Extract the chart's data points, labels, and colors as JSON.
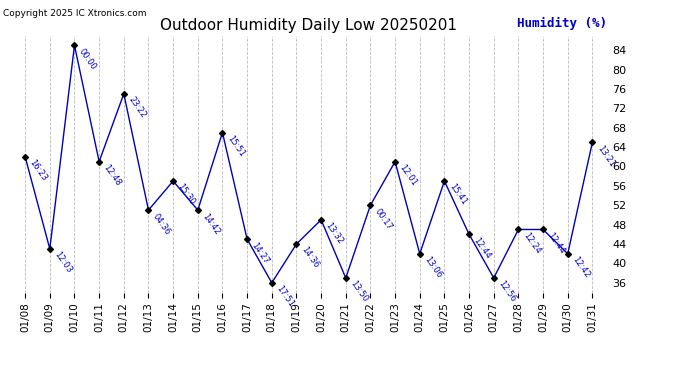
{
  "title": "Outdoor Humidity Daily Low 20250201",
  "ylabel": "Humidity (%)",
  "copyright": "Copyright 2025 IC Xtronics.com",
  "background_color": "#ffffff",
  "line_color": "#0000bb",
  "annotation_color": "#0000cc",
  "marker_color": "#000000",
  "grid_color": "#bbbbbb",
  "dates": [
    "01/08",
    "01/09",
    "01/10",
    "01/11",
    "01/12",
    "01/13",
    "01/14",
    "01/15",
    "01/16",
    "01/17",
    "01/18",
    "01/19",
    "01/20",
    "01/21",
    "01/22",
    "01/23",
    "01/24",
    "01/25",
    "01/26",
    "01/27",
    "01/28",
    "01/29",
    "01/30",
    "01/31"
  ],
  "values": [
    62,
    43,
    85,
    61,
    75,
    51,
    57,
    51,
    67,
    45,
    36,
    44,
    49,
    37,
    52,
    61,
    42,
    57,
    46,
    37,
    47,
    47,
    42,
    65
  ],
  "times": [
    "16:23",
    "12:03",
    "00:00",
    "12:48",
    "23:22",
    "04:36",
    "15:30",
    "14:42",
    "15:51",
    "14:27",
    "17:51",
    "14:36",
    "13:32",
    "13:50",
    "00:17",
    "12:01",
    "13:06",
    "15:41",
    "12:44",
    "12:56",
    "12:24",
    "12:44",
    "12:42",
    "13:21"
  ],
  "ylim": [
    34,
    87
  ],
  "yticks": [
    36,
    40,
    44,
    48,
    52,
    56,
    60,
    64,
    68,
    72,
    76,
    80,
    84
  ]
}
